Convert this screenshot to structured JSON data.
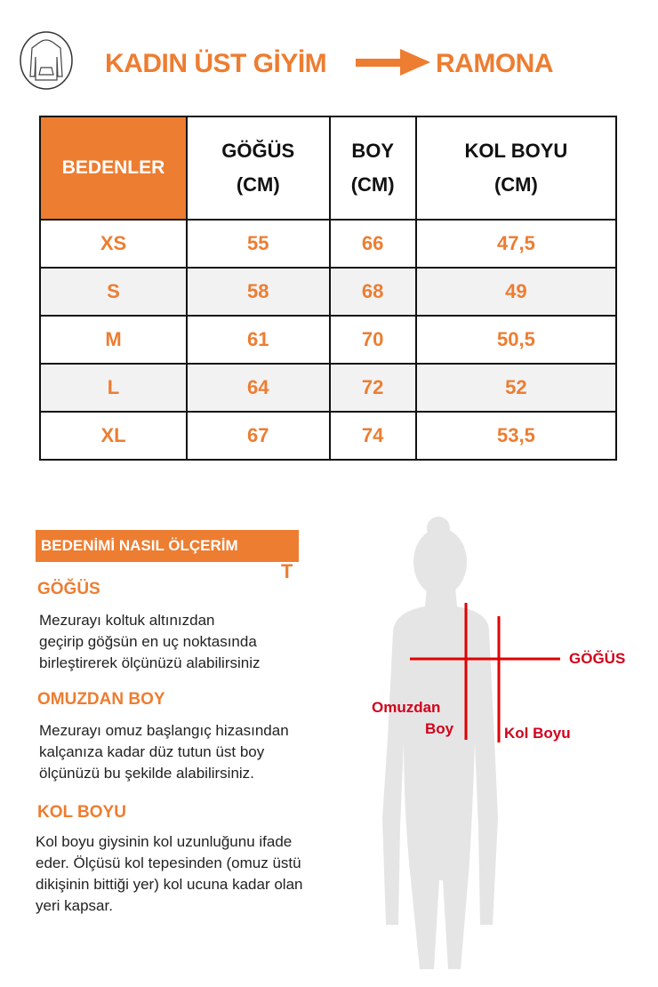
{
  "header": {
    "title": "KADIN ÜST GİYİM",
    "brand": "RAMONA",
    "icon": "hoodie-icon",
    "accent": "#ED7D31"
  },
  "table": {
    "columns": [
      {
        "line1": "BEDENLER",
        "line2": ""
      },
      {
        "line1": "GÖĞÜS",
        "line2": "(CM)"
      },
      {
        "line1": "BOY",
        "line2": "(CM)"
      },
      {
        "line1": "KOL BOYU",
        "line2": "(CM)"
      }
    ],
    "rows": [
      [
        "XS",
        "55",
        "66",
        "47,5"
      ],
      [
        "S",
        "58",
        "68",
        "49"
      ],
      [
        "M",
        "61",
        "70",
        "50,5"
      ],
      [
        "L",
        "64",
        "72",
        "52"
      ],
      [
        "XL",
        "67",
        "74",
        "53,5"
      ]
    ]
  },
  "guide": {
    "heading": "BEDENİMİ NASIL ÖLÇERİM",
    "heading_mark": "T",
    "sections": [
      {
        "title": "GÖĞÜS",
        "lines": [
          "Mezurayı koltuk altınızdan",
          "geçirip göğsün en uç noktasında",
          "birleştirerek ölçünüzü alabilirsiniz"
        ]
      },
      {
        "title": "OMUZDAN BOY",
        "lines": [
          "Mezurayı omuz başlangıç hizasından",
          "kalçanıza kadar düz tutun üst boy",
          "ölçünüzü bu şekilde alabilirsiniz."
        ]
      },
      {
        "title": "KOL BOYU",
        "lines": [
          "Kol boyu giysinin kol uzunluğunu ifade",
          "eder. Ölçüsü kol tepesinden (omuz üstü",
          "dikişinin bittiği yer) kol ucuna kadar olan",
          "yeri kapsar."
        ]
      }
    ]
  },
  "figure": {
    "chest": "GÖĞÜS",
    "length_1": "Omuzdan",
    "length_2": "Boy",
    "sleeve": "Kol Boyu",
    "line_color": "#e00000"
  }
}
